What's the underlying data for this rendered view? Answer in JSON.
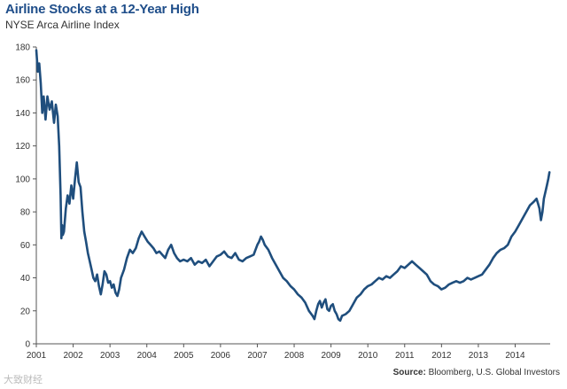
{
  "chart_data": {
    "type": "line",
    "title": "Airline Stocks at a 12-Year High",
    "subtitle": "NYSE Arca Airline Index",
    "xlabel": "",
    "ylabel": "",
    "xlim": [
      2001,
      2014.95
    ],
    "ylim": [
      0,
      180
    ],
    "yticks": [
      0,
      20,
      40,
      60,
      80,
      100,
      120,
      140,
      160,
      180
    ],
    "xtick_labels": [
      "2001",
      "2002",
      "2003",
      "2004",
      "2005",
      "2006",
      "2007",
      "2008",
      "2009",
      "2010",
      "2011",
      "2012",
      "2013",
      "2014"
    ],
    "grid": false,
    "line_color": "#1f4e7d",
    "series": [
      {
        "name": "NYSE Arca Airline Index",
        "x": [
          2001.0,
          2001.04,
          2001.08,
          2001.12,
          2001.16,
          2001.2,
          2001.25,
          2001.3,
          2001.36,
          2001.42,
          2001.48,
          2001.53,
          2001.58,
          2001.62,
          2001.66,
          2001.68,
          2001.7,
          2001.72,
          2001.75,
          2001.8,
          2001.85,
          2001.9,
          2001.95,
          2002.0,
          2002.05,
          2002.1,
          2002.15,
          2002.2,
          2002.25,
          2002.3,
          2002.35,
          2002.4,
          2002.45,
          2002.5,
          2002.55,
          2002.6,
          2002.65,
          2002.7,
          2002.75,
          2002.8,
          2002.85,
          2002.9,
          2002.95,
          2003.0,
          2003.05,
          2003.1,
          2003.15,
          2003.2,
          2003.25,
          2003.3,
          2003.38,
          2003.46,
          2003.54,
          2003.62,
          2003.7,
          2003.78,
          2003.86,
          2003.94,
          2004.02,
          2004.1,
          2004.18,
          2004.26,
          2004.34,
          2004.42,
          2004.5,
          2004.58,
          2004.66,
          2004.74,
          2004.82,
          2004.9,
          2005.0,
          2005.1,
          2005.2,
          2005.3,
          2005.4,
          2005.5,
          2005.6,
          2005.7,
          2005.8,
          2005.9,
          2006.0,
          2006.1,
          2006.2,
          2006.3,
          2006.4,
          2006.5,
          2006.6,
          2006.7,
          2006.8,
          2006.9,
          2007.0,
          2007.05,
          2007.1,
          2007.15,
          2007.2,
          2007.3,
          2007.4,
          2007.5,
          2007.6,
          2007.7,
          2007.8,
          2007.9,
          2008.0,
          2008.1,
          2008.2,
          2008.3,
          2008.4,
          2008.5,
          2008.55,
          2008.6,
          2008.65,
          2008.7,
          2008.75,
          2008.8,
          2008.85,
          2008.9,
          2008.95,
          2009.0,
          2009.05,
          2009.1,
          2009.15,
          2009.2,
          2009.25,
          2009.3,
          2009.4,
          2009.5,
          2009.6,
          2009.7,
          2009.8,
          2009.9,
          2010.0,
          2010.1,
          2010.2,
          2010.3,
          2010.4,
          2010.5,
          2010.6,
          2010.7,
          2010.8,
          2010.9,
          2011.0,
          2011.1,
          2011.2,
          2011.3,
          2011.4,
          2011.5,
          2011.6,
          2011.7,
          2011.8,
          2011.9,
          2012.0,
          2012.1,
          2012.2,
          2012.3,
          2012.4,
          2012.5,
          2012.6,
          2012.7,
          2012.8,
          2012.9,
          2013.0,
          2013.1,
          2013.2,
          2013.3,
          2013.4,
          2013.5,
          2013.6,
          2013.7,
          2013.8,
          2013.9,
          2014.0,
          2014.1,
          2014.2,
          2014.3,
          2014.4,
          2014.5,
          2014.58,
          2014.62,
          2014.66,
          2014.7,
          2014.74,
          2014.78,
          2014.82,
          2014.86,
          2014.9,
          2014.93
        ],
        "y": [
          178,
          165,
          170,
          158,
          140,
          150,
          136,
          150,
          142,
          147,
          134,
          145,
          138,
          120,
          90,
          64,
          72,
          66,
          68,
          82,
          90,
          85,
          96,
          88,
          100,
          110,
          98,
          95,
          80,
          68,
          62,
          55,
          50,
          45,
          40,
          38,
          42,
          35,
          30,
          36,
          44,
          42,
          37,
          38,
          34,
          36,
          31,
          29,
          33,
          40,
          45,
          52,
          57,
          55,
          58,
          64,
          68,
          65,
          62,
          60,
          58,
          55,
          56,
          54,
          52,
          57,
          60,
          55,
          52,
          50,
          51,
          50,
          52,
          48,
          50,
          49,
          51,
          47,
          50,
          53,
          54,
          56,
          53,
          52,
          55,
          51,
          50,
          52,
          53,
          54,
          60,
          62,
          65,
          63,
          60,
          57,
          52,
          48,
          44,
          40,
          38,
          35,
          33,
          30,
          28,
          25,
          20,
          17,
          15,
          20,
          24,
          26,
          22,
          25,
          27,
          21,
          20,
          23,
          24,
          20,
          18,
          15,
          14,
          17,
          18,
          20,
          24,
          28,
          30,
          33,
          35,
          36,
          38,
          40,
          39,
          41,
          40,
          42,
          44,
          47,
          46,
          48,
          50,
          48,
          46,
          44,
          42,
          38,
          36,
          35,
          33,
          34,
          36,
          37,
          38,
          37,
          38,
          40,
          39,
          40,
          41,
          42,
          45,
          48,
          52,
          55,
          57,
          58,
          60,
          65,
          68,
          72,
          76,
          80,
          84,
          86,
          88,
          85,
          82,
          75,
          80,
          88,
          92,
          96,
          100,
          104
        ]
      }
    ]
  },
  "source": {
    "label": "Source:",
    "text": " Bloomberg, U.S. Global Investors"
  },
  "watermark": "大致财经"
}
